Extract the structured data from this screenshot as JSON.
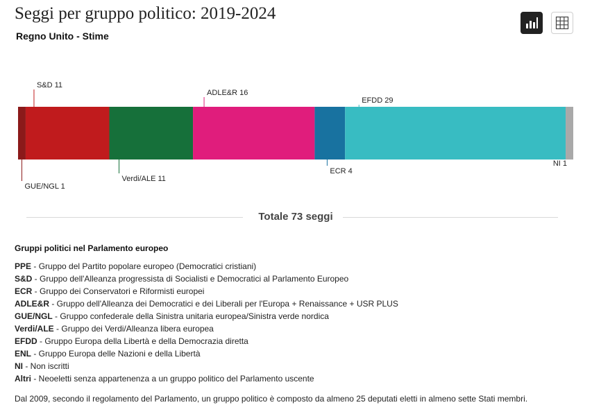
{
  "header": {
    "title": "Seggi per gruppo politico: 2019-2024",
    "subtitle": "Regno Unito - Stime"
  },
  "controls": {
    "chart_view": "chart-view-icon",
    "table_view": "table-view-icon"
  },
  "chart_data": {
    "type": "bar",
    "orientation": "horizontal-stacked",
    "title": "Seggi per gruppo politico: 2019-2024",
    "subtitle": "Regno Unito - Stime",
    "total_seats": 73,
    "categories": [
      "GUE/NGL",
      "S&D",
      "Verdi/ALE",
      "ADLE&R",
      "ECR",
      "EFDD",
      "NI"
    ],
    "values": [
      1,
      11,
      11,
      16,
      4,
      29,
      1
    ],
    "colors": [
      "#8b1a1a",
      "#c01b1d",
      "#16703a",
      "#e01d7c",
      "#1872a0",
      "#38bcc2",
      "#a9a9a9"
    ],
    "label_sides": [
      "bottom",
      "top",
      "bottom",
      "top",
      "bottom",
      "top",
      "bottom"
    ],
    "labels": [
      "GUE/NGL 1",
      "S&D 11",
      "Verdi/ALE 11",
      "ADLE&R 16",
      "ECR 4",
      "EFDD 29",
      "NI 1"
    ]
  },
  "total": {
    "label": "Totale 73 seggi"
  },
  "legend": {
    "title": "Gruppi politici nel Parlamento europeo",
    "items": [
      {
        "abbr": "PPE",
        "desc": "Gruppo del Partito popolare europeo (Democratici cristiani)"
      },
      {
        "abbr": "S&D",
        "desc": "Gruppo dell'Alleanza progressista di Socialisti e Democratici al Parlamento Europeo"
      },
      {
        "abbr": "ECR",
        "desc": "Gruppo dei Conservatori e Riformisti europei"
      },
      {
        "abbr": "ADLE&R",
        "desc": "Gruppo dell'Alleanza dei Democratici e dei Liberali per l'Europa + Renaissance + USR PLUS"
      },
      {
        "abbr": "GUE/NGL",
        "desc": "Gruppo confederale della Sinistra unitaria europea/Sinistra verde nordica"
      },
      {
        "abbr": "Verdi/ALE",
        "desc": "Gruppo dei Verdi/Alleanza libera europea"
      },
      {
        "abbr": "EFDD",
        "desc": "Gruppo Europa della Libertà e della Democrazia diretta"
      },
      {
        "abbr": "ENL",
        "desc": "Gruppo Europa delle Nazioni e della Libertà"
      },
      {
        "abbr": "NI",
        "desc": "Non iscritti"
      },
      {
        "abbr": "Altri",
        "desc": "Neoeletti senza appartenenza a un gruppo politico del Parlamento uscente"
      }
    ]
  },
  "note": "Dal 2009, secondo il regolamento del Parlamento, un gruppo politico è composto da almeno 25 deputati eletti in almeno sette Stati membri."
}
